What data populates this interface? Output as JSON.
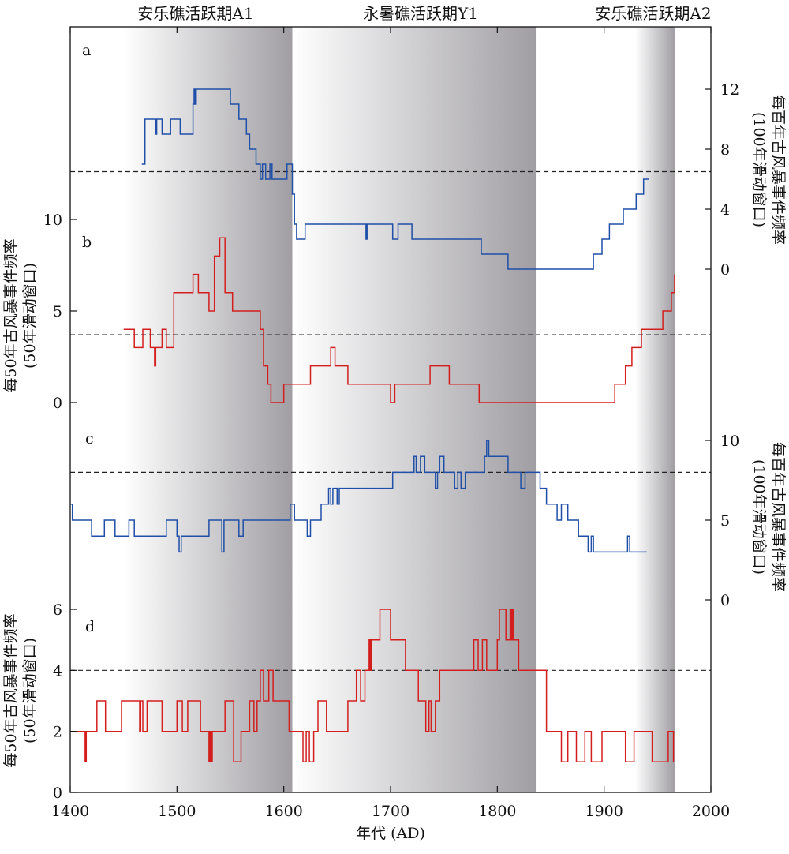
{
  "periods": [
    {
      "label": "安乐礁活跃期A1",
      "start": 1450,
      "end": 1608
    },
    {
      "label": "永暑礁活跃期Y1",
      "start": 1608,
      "end": 1836
    },
    {
      "label": "安乐礁活跃期A2",
      "start": 1929,
      "end": 1966
    }
  ],
  "colors": {
    "blue": "#1f4fa8",
    "red": "#d41e1e",
    "shade_dark": "#a09ea3",
    "shade_light": "#ffffff"
  },
  "x_axis": {
    "title": "年代 (AD)",
    "ticks": [
      1400,
      1500,
      1600,
      1700,
      1800,
      1900,
      2000
    ]
  },
  "left_axis_upper": {
    "title": "每50年古风暴事件频率 (50年滑动窗口)",
    "ticks": [
      0,
      5,
      10
    ]
  },
  "left_axis_lower": {
    "title": "每50年古风暴事件频率 (50年滑动窗口)",
    "ticks": [
      0,
      2,
      4,
      6
    ]
  },
  "right_axis_upper": {
    "title": "每百年古风暴事件频率 (100年滑动窗口)",
    "ticks": [
      0,
      4,
      8,
      12
    ]
  },
  "right_axis_lower": {
    "title": "每百年古风暴事件频率 (100年滑动窗口)",
    "ticks": [
      0,
      5,
      10
    ]
  },
  "chart_data": [
    {
      "panel": "a",
      "type": "line",
      "color": "blue",
      "axis": "right_upper",
      "ylim": [
        0,
        12
      ],
      "threshold": 6.5,
      "x": [
        1467,
        1470,
        1478,
        1480,
        1481,
        1484,
        1486,
        1490,
        1494,
        1500,
        1503,
        1508,
        1511,
        1515,
        1516,
        1517,
        1518,
        1520,
        1525,
        1537,
        1550,
        1552,
        1555,
        1558,
        1562,
        1565,
        1568,
        1571,
        1574,
        1578,
        1580,
        1583,
        1585,
        1587,
        1589,
        1591,
        1595,
        1600,
        1603,
        1606,
        1608,
        1610,
        1612,
        1614,
        1620,
        1624,
        1630,
        1640,
        1650,
        1660,
        1676,
        1677,
        1678,
        1680,
        1690,
        1699,
        1702,
        1707,
        1710,
        1717,
        1720,
        1730,
        1740,
        1750,
        1760,
        1770,
        1780,
        1785,
        1795,
        1800,
        1805,
        1810,
        1820,
        1830,
        1840,
        1850,
        1860,
        1870,
        1880,
        1885,
        1888,
        1890,
        1893,
        1898,
        1902,
        1905,
        1910,
        1915,
        1918,
        1920,
        1925,
        1930,
        1935,
        1937,
        1940,
        1942
      ],
      "y": [
        7,
        10,
        10,
        9,
        10,
        10,
        9,
        9,
        10,
        10,
        9,
        9,
        9,
        11,
        12,
        11,
        12,
        12,
        12,
        12,
        11,
        11,
        11,
        10,
        10,
        9,
        8,
        8,
        7,
        6,
        7,
        6,
        6,
        7,
        6,
        6,
        6,
        6,
        7,
        7,
        5,
        3,
        2,
        2,
        3,
        3,
        3,
        3,
        3,
        3,
        3,
        2,
        3,
        3,
        3,
        3,
        2,
        3,
        3,
        3,
        2,
        2,
        2,
        2,
        2,
        2,
        2,
        1,
        1,
        1,
        1,
        0,
        0,
        0,
        0,
        0,
        0,
        0,
        0,
        0,
        0,
        1,
        1,
        2,
        2,
        3,
        3,
        3,
        4,
        4,
        4,
        5,
        5,
        6,
        6,
        6
      ]
    },
    {
      "panel": "b",
      "type": "line",
      "color": "red",
      "axis": "left_upper",
      "ylim": [
        0,
        10
      ],
      "threshold": 3.7,
      "x": [
        1450,
        1455,
        1460,
        1465,
        1468,
        1470,
        1475,
        1478,
        1479,
        1480,
        1484,
        1486,
        1488,
        1490,
        1494,
        1497,
        1502,
        1505,
        1512,
        1515,
        1520,
        1524,
        1528,
        1530,
        1535,
        1538,
        1540,
        1544,
        1545,
        1548,
        1552,
        1555,
        1560,
        1570,
        1578,
        1581,
        1585,
        1588,
        1590,
        1594,
        1600,
        1605,
        1610,
        1620,
        1625,
        1640,
        1644,
        1648,
        1653,
        1660,
        1668,
        1676,
        1684,
        1692,
        1700,
        1704,
        1710,
        1716,
        1720,
        1730,
        1737,
        1740,
        1750,
        1755,
        1760,
        1770,
        1775,
        1780,
        1783,
        1790,
        1800,
        1810,
        1820,
        1830,
        1840,
        1850,
        1860,
        1870,
        1880,
        1890,
        1900,
        1908,
        1910,
        1914,
        1917,
        1920,
        1924,
        1926,
        1929,
        1932,
        1935,
        1938,
        1944,
        1950,
        1955,
        1960,
        1963,
        1966
      ],
      "y": [
        4,
        4,
        3,
        3,
        4,
        4,
        3,
        3,
        2,
        3,
        3,
        4,
        4,
        3,
        3,
        6,
        6,
        6,
        6,
        7,
        6,
        6,
        6,
        5,
        8,
        8,
        9,
        9,
        6,
        6,
        5,
        5,
        5,
        5,
        4,
        2,
        1,
        0,
        0,
        0,
        1,
        1,
        1,
        1,
        2,
        2,
        3,
        2,
        2,
        1,
        1,
        1,
        1,
        1,
        0,
        1,
        1,
        1,
        1,
        1,
        2,
        2,
        2,
        1,
        1,
        1,
        1,
        1,
        0,
        0,
        0,
        0,
        0,
        0,
        0,
        0,
        0,
        0,
        0,
        0,
        0,
        0,
        1,
        1,
        1,
        2,
        2,
        3,
        3,
        3,
        4,
        4,
        4,
        4,
        5,
        5,
        6,
        7
      ]
    },
    {
      "panel": "c",
      "type": "line",
      "color": "blue",
      "axis": "right_lower",
      "ylim": [
        0,
        10
      ],
      "threshold": 8,
      "x": [
        1400,
        1402,
        1408,
        1420,
        1428,
        1432,
        1440,
        1442,
        1448,
        1455,
        1458,
        1460,
        1480,
        1490,
        1497,
        1500,
        1502,
        1504,
        1508,
        1512,
        1516,
        1520,
        1530,
        1540,
        1542,
        1544,
        1550,
        1556,
        1558,
        1562,
        1570,
        1580,
        1590,
        1604,
        1606,
        1610,
        1614,
        1620,
        1622,
        1625,
        1630,
        1635,
        1640,
        1642,
        1644,
        1646,
        1648,
        1650,
        1652,
        1654,
        1656,
        1660,
        1670,
        1680,
        1690,
        1700,
        1702,
        1710,
        1720,
        1722,
        1724,
        1726,
        1728,
        1730,
        1732,
        1734,
        1740,
        1742,
        1744,
        1746,
        1750,
        1752,
        1756,
        1760,
        1763,
        1766,
        1770,
        1780,
        1788,
        1790,
        1792,
        1794,
        1800,
        1810,
        1814,
        1818,
        1822,
        1826,
        1830,
        1836,
        1840,
        1846,
        1850,
        1856,
        1860,
        1866,
        1870,
        1876,
        1880,
        1885,
        1888,
        1890,
        1900,
        1910,
        1920,
        1922,
        1924,
        1930,
        1940
      ],
      "y": [
        6,
        5,
        5,
        4,
        4,
        5,
        5,
        4,
        4,
        5,
        5,
        4,
        4,
        5,
        5,
        4,
        3,
        4,
        4,
        4,
        4,
        4,
        5,
        5,
        3,
        5,
        5,
        5,
        4,
        5,
        5,
        5,
        5,
        5,
        6,
        5,
        5,
        5,
        4,
        5,
        5,
        6,
        6,
        7,
        6,
        7,
        7,
        6,
        7,
        7,
        7,
        7,
        7,
        7,
        7,
        7,
        8,
        8,
        8,
        9,
        8,
        8,
        9,
        9,
        8,
        8,
        8,
        7,
        8,
        9,
        8,
        8,
        8,
        7,
        8,
        7,
        8,
        8,
        9,
        10,
        9,
        9,
        9,
        8,
        8,
        8,
        7,
        8,
        8,
        8,
        7,
        6,
        6,
        5,
        6,
        5,
        5,
        4,
        4,
        3,
        4,
        3,
        3,
        3,
        3,
        4,
        3,
        3,
        3
      ]
    },
    {
      "panel": "d",
      "type": "line",
      "color": "red",
      "axis": "left_lower",
      "ylim": [
        0,
        6
      ],
      "threshold": 4,
      "x": [
        1400,
        1410,
        1414,
        1415,
        1420,
        1425,
        1430,
        1433,
        1440,
        1448,
        1456,
        1465,
        1466,
        1468,
        1472,
        1478,
        1486,
        1500,
        1505,
        1510,
        1515,
        1522,
        1530,
        1531,
        1532,
        1533,
        1540,
        1545,
        1553,
        1560,
        1568,
        1572,
        1575,
        1578,
        1581,
        1586,
        1590,
        1600,
        1605,
        1610,
        1618,
        1621,
        1624,
        1628,
        1632,
        1640,
        1650,
        1660,
        1668,
        1672,
        1676,
        1680,
        1681,
        1682,
        1690,
        1700,
        1704,
        1710,
        1714,
        1722,
        1726,
        1730,
        1733,
        1736,
        1738,
        1742,
        1746,
        1752,
        1756,
        1762,
        1770,
        1778,
        1782,
        1786,
        1790,
        1800,
        1802,
        1808,
        1812,
        1813,
        1814,
        1815,
        1820,
        1826,
        1832,
        1840,
        1846,
        1850,
        1856,
        1860,
        1866,
        1874,
        1880,
        1882,
        1888,
        1898,
        1900,
        1910,
        1920,
        1925,
        1928,
        1935,
        1945,
        1950,
        1955,
        1960,
        1965
      ],
      "y": [
        2,
        2,
        1,
        2,
        2,
        3,
        3,
        2,
        2,
        3,
        3,
        2,
        3,
        2,
        3,
        3,
        2,
        3,
        2,
        3,
        3,
        2,
        1,
        2,
        1,
        2,
        2,
        3,
        1,
        2,
        3,
        2,
        3,
        4,
        3,
        4,
        3,
        3,
        2,
        2,
        1,
        2,
        1,
        2,
        3,
        2,
        2,
        3,
        4,
        3,
        4,
        5,
        4,
        5,
        6,
        5,
        5,
        5,
        4,
        4,
        3,
        3,
        2,
        3,
        2,
        3,
        4,
        4,
        4,
        4,
        4,
        5,
        4,
        5,
        4,
        5,
        6,
        5,
        6,
        5,
        6,
        5,
        4,
        4,
        4,
        4,
        2,
        2,
        2,
        1,
        2,
        1,
        1,
        2,
        1,
        2,
        2,
        2,
        1,
        1,
        2,
        2,
        1,
        1,
        1,
        2,
        1
      ]
    }
  ],
  "panel_letters": [
    "a",
    "b",
    "c",
    "d"
  ]
}
